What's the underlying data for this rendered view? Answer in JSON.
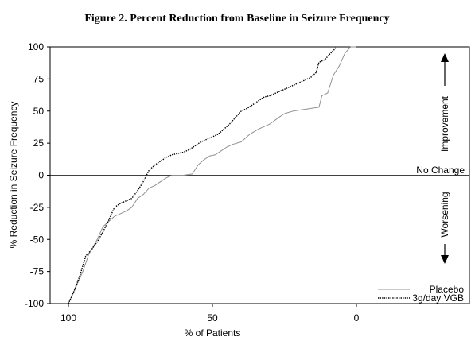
{
  "chart_data": {
    "type": "line",
    "title": "Figure 2. Percent Reduction from Baseline in Seizure Frequency",
    "xlabel": "% of Patients",
    "ylabel": "% Reduction in Seizure Frequency",
    "xlim": [
      100,
      0
    ],
    "ylim": [
      -100,
      100
    ],
    "x_reversed": true,
    "xticks": [
      100,
      50,
      0
    ],
    "yticks": [
      100,
      75,
      50,
      25,
      0,
      -25,
      -50,
      -75,
      -100
    ],
    "grid": false,
    "legend_position": "bottom-right",
    "reference_line": {
      "y": 0,
      "label": "No Change"
    },
    "annotations": {
      "improvement": "Improvement",
      "worsening": "Worsening"
    },
    "series": [
      {
        "name": "Placebo",
        "color": "#909090",
        "style": "solid",
        "points": [
          [
            100,
            -100
          ],
          [
            97,
            -85
          ],
          [
            95,
            -75
          ],
          [
            93,
            -62
          ],
          [
            90,
            -50
          ],
          [
            88,
            -40
          ],
          [
            86,
            -36
          ],
          [
            84,
            -32
          ],
          [
            82,
            -30
          ],
          [
            80,
            -28
          ],
          [
            78,
            -25
          ],
          [
            76,
            -18
          ],
          [
            74,
            -15
          ],
          [
            72,
            -10
          ],
          [
            70,
            -8
          ],
          [
            68,
            -5
          ],
          [
            66,
            -2
          ],
          [
            64,
            0
          ],
          [
            62,
            0
          ],
          [
            60,
            0
          ],
          [
            57,
            1
          ],
          [
            55,
            8
          ],
          [
            53,
            12
          ],
          [
            51,
            15
          ],
          [
            49,
            16
          ],
          [
            47,
            19
          ],
          [
            45,
            22
          ],
          [
            43,
            24
          ],
          [
            40,
            26
          ],
          [
            37,
            32
          ],
          [
            34,
            36
          ],
          [
            30,
            40
          ],
          [
            27,
            45
          ],
          [
            25,
            48
          ],
          [
            22,
            50
          ],
          [
            19,
            51
          ],
          [
            16,
            52
          ],
          [
            13,
            53
          ],
          [
            12,
            62
          ],
          [
            10,
            64
          ],
          [
            8,
            78
          ],
          [
            6,
            85
          ],
          [
            4,
            95
          ],
          [
            2,
            100
          ],
          [
            0,
            100
          ]
        ]
      },
      {
        "name": "3g/day VGB",
        "color": "#000000",
        "style": "dotted",
        "points": [
          [
            100,
            -100
          ],
          [
            98,
            -90
          ],
          [
            96,
            -78
          ],
          [
            94,
            -63
          ],
          [
            92,
            -58
          ],
          [
            90,
            -52
          ],
          [
            88,
            -44
          ],
          [
            86,
            -35
          ],
          [
            84,
            -25
          ],
          [
            82,
            -22
          ],
          [
            80,
            -20
          ],
          [
            78,
            -18
          ],
          [
            76,
            -12
          ],
          [
            74,
            -5
          ],
          [
            72,
            4
          ],
          [
            70,
            8
          ],
          [
            68,
            11
          ],
          [
            66,
            14
          ],
          [
            64,
            16
          ],
          [
            62,
            17
          ],
          [
            60,
            18
          ],
          [
            58,
            20
          ],
          [
            56,
            23
          ],
          [
            54,
            26
          ],
          [
            52,
            28
          ],
          [
            50,
            30
          ],
          [
            48,
            32
          ],
          [
            46,
            36
          ],
          [
            44,
            40
          ],
          [
            42,
            45
          ],
          [
            40,
            50
          ],
          [
            38,
            52
          ],
          [
            36,
            55
          ],
          [
            34,
            58
          ],
          [
            32,
            61
          ],
          [
            30,
            62
          ],
          [
            28,
            64
          ],
          [
            26,
            66
          ],
          [
            24,
            68
          ],
          [
            22,
            70
          ],
          [
            20,
            72
          ],
          [
            18,
            74
          ],
          [
            16,
            76
          ],
          [
            14,
            80
          ],
          [
            13,
            88
          ],
          [
            11,
            90
          ],
          [
            9,
            95
          ],
          [
            8,
            97
          ],
          [
            7,
            100
          ]
        ]
      }
    ]
  }
}
